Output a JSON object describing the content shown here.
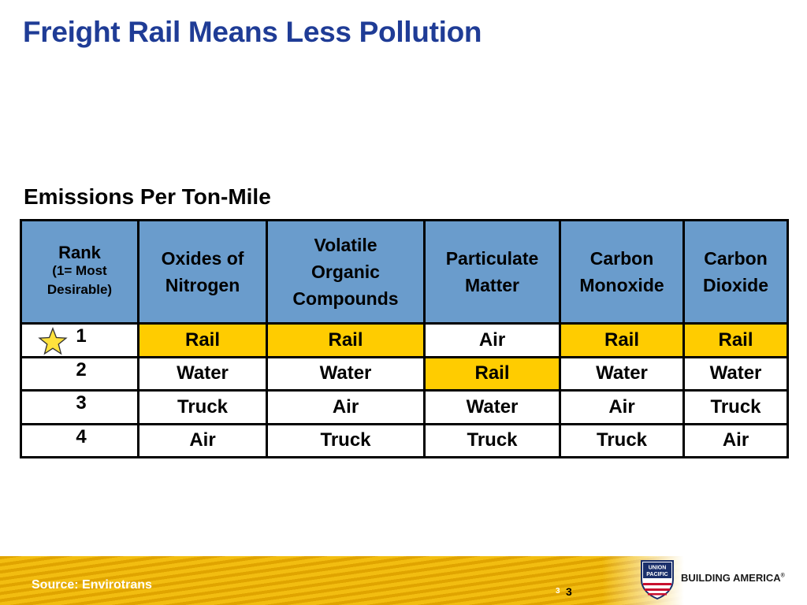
{
  "title": "Freight Rail Means Less Pollution",
  "table_title": "Emissions Per Ton-Mile",
  "table": {
    "rank_header": {
      "word": "Rank",
      "note_line1": "(1= Most",
      "note_line2": "Desirable)"
    },
    "columns": [
      {
        "line1": "Oxides of",
        "line2": "Nitrogen"
      },
      {
        "line1": "Volatile",
        "line2": "Organic",
        "line3": "Compounds"
      },
      {
        "line1": "Particulate",
        "line2": "Matter"
      },
      {
        "line1": "Carbon",
        "line2": "Monoxide"
      },
      {
        "line1": "Carbon",
        "line2": "Dioxide"
      }
    ],
    "rows": [
      {
        "rank": "1",
        "cells": [
          "Rail",
          "Rail",
          "Air",
          "Rail",
          "Rail"
        ]
      },
      {
        "rank": "2",
        "cells": [
          "Water",
          "Water",
          "Rail",
          "Water",
          "Water"
        ]
      },
      {
        "rank": "3",
        "cells": [
          "Truck",
          "Air",
          "Water",
          "Air",
          "Truck"
        ]
      },
      {
        "rank": "4",
        "cells": [
          "Air",
          "Truck",
          "Truck",
          "Truck",
          "Air"
        ]
      }
    ]
  },
  "footer": {
    "source": "Source: Envirotrans",
    "page_small": "3",
    "page": "3",
    "logo_top": "UNION",
    "logo_bottom": "PACIFIC",
    "slogan": "BUILDING AMERICA",
    "slogan_mark": "®"
  },
  "colors": {
    "title": "#1f3c96",
    "header_fill": "#6a9ccc",
    "highlight_fill": "#ffcc00",
    "star_fill": "#ffe23d",
    "footer_gold": "#f2bd10"
  },
  "icons": {
    "star": "star-icon",
    "logo": "union-pacific-shield-icon"
  }
}
